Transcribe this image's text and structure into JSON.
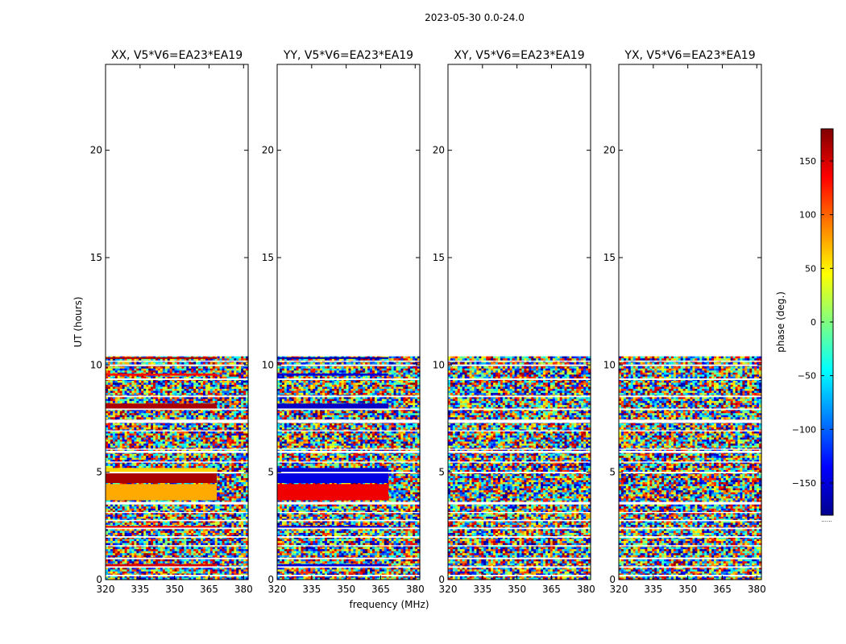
{
  "figure": {
    "suptitle": "2023-05-30 0.0-24.0",
    "xlabel": "frequency (MHz)",
    "ylabel": "UT (hours)",
    "colorbar_label": "phase (deg.)",
    "colorbar_footnote": "......"
  },
  "chart_data": {
    "type": "heatmap",
    "xlim": [
      320,
      382
    ],
    "ylim": [
      0,
      24
    ],
    "xticks": [
      320,
      335,
      350,
      365,
      380
    ],
    "yticks": [
      0,
      5,
      10,
      15,
      20
    ],
    "data_extent_hours": [
      0,
      10.4
    ],
    "color_range": [
      -180,
      180
    ],
    "colorbar_ticks": [
      150,
      100,
      50,
      0,
      -50,
      -100,
      -150
    ],
    "colorbar_tick_labels": [
      "150",
      "100",
      "50",
      "0",
      "−50",
      "−100",
      "−150"
    ],
    "colormap": "jet",
    "gap_bands_hours": [
      [
        0.15,
        0.22
      ],
      [
        0.55,
        0.62
      ],
      [
        0.95,
        1.02
      ],
      [
        1.55,
        1.6
      ],
      [
        1.95,
        2.02
      ],
      [
        2.35,
        2.42
      ],
      [
        2.72,
        2.78
      ],
      [
        3.1,
        3.15
      ],
      [
        3.5,
        3.62
      ],
      [
        4.95,
        5.02
      ],
      [
        5.45,
        5.5
      ],
      [
        5.9,
        6.0
      ],
      [
        6.05,
        6.1
      ],
      [
        6.9,
        6.95
      ],
      [
        7.3,
        7.45
      ],
      [
        7.9,
        7.97
      ],
      [
        8.5,
        8.57
      ],
      [
        9.3,
        9.37
      ],
      [
        9.95,
        10.02
      ],
      [
        10.15,
        10.2
      ]
    ],
    "panels": [
      {
        "title": "XX, V5*V6=EA23*EA19",
        "coherent_bands": [
          {
            "t": [
              0.62,
              0.72
            ],
            "phase": 150
          },
          {
            "t": [
              2.42,
              2.5
            ],
            "phase": 140
          },
          {
            "t": [
              3.7,
              4.45
            ],
            "phase": 75
          },
          {
            "t": [
              4.5,
              4.95
            ],
            "phase": 165
          },
          {
            "t": [
              5.0,
              5.2
            ],
            "phase": 60
          },
          {
            "t": [
              7.9,
              8.2
            ],
            "phase": 165
          },
          {
            "t": [
              9.5,
              9.6
            ],
            "phase": 130
          },
          {
            "t": [
              10.28,
              10.36
            ],
            "phase": 165
          }
        ]
      },
      {
        "title": "YY, V5*V6=EA23*EA19",
        "coherent_bands": [
          {
            "t": [
              0.62,
              0.72
            ],
            "phase": -150
          },
          {
            "t": [
              2.42,
              2.5
            ],
            "phase": -150
          },
          {
            "t": [
              3.7,
              4.45
            ],
            "phase": 140
          },
          {
            "t": [
              4.5,
              4.95
            ],
            "phase": -145
          },
          {
            "t": [
              5.0,
              5.2
            ],
            "phase": -150
          },
          {
            "t": [
              7.9,
              8.2
            ],
            "phase": -155
          },
          {
            "t": [
              9.5,
              9.6
            ],
            "phase": -150
          },
          {
            "t": [
              10.28,
              10.36
            ],
            "phase": -165
          }
        ]
      },
      {
        "title": "XY, V5*V6=EA23*EA19",
        "coherent_bands": []
      },
      {
        "title": "YX, V5*V6=EA23*EA19",
        "coherent_bands": []
      }
    ]
  }
}
